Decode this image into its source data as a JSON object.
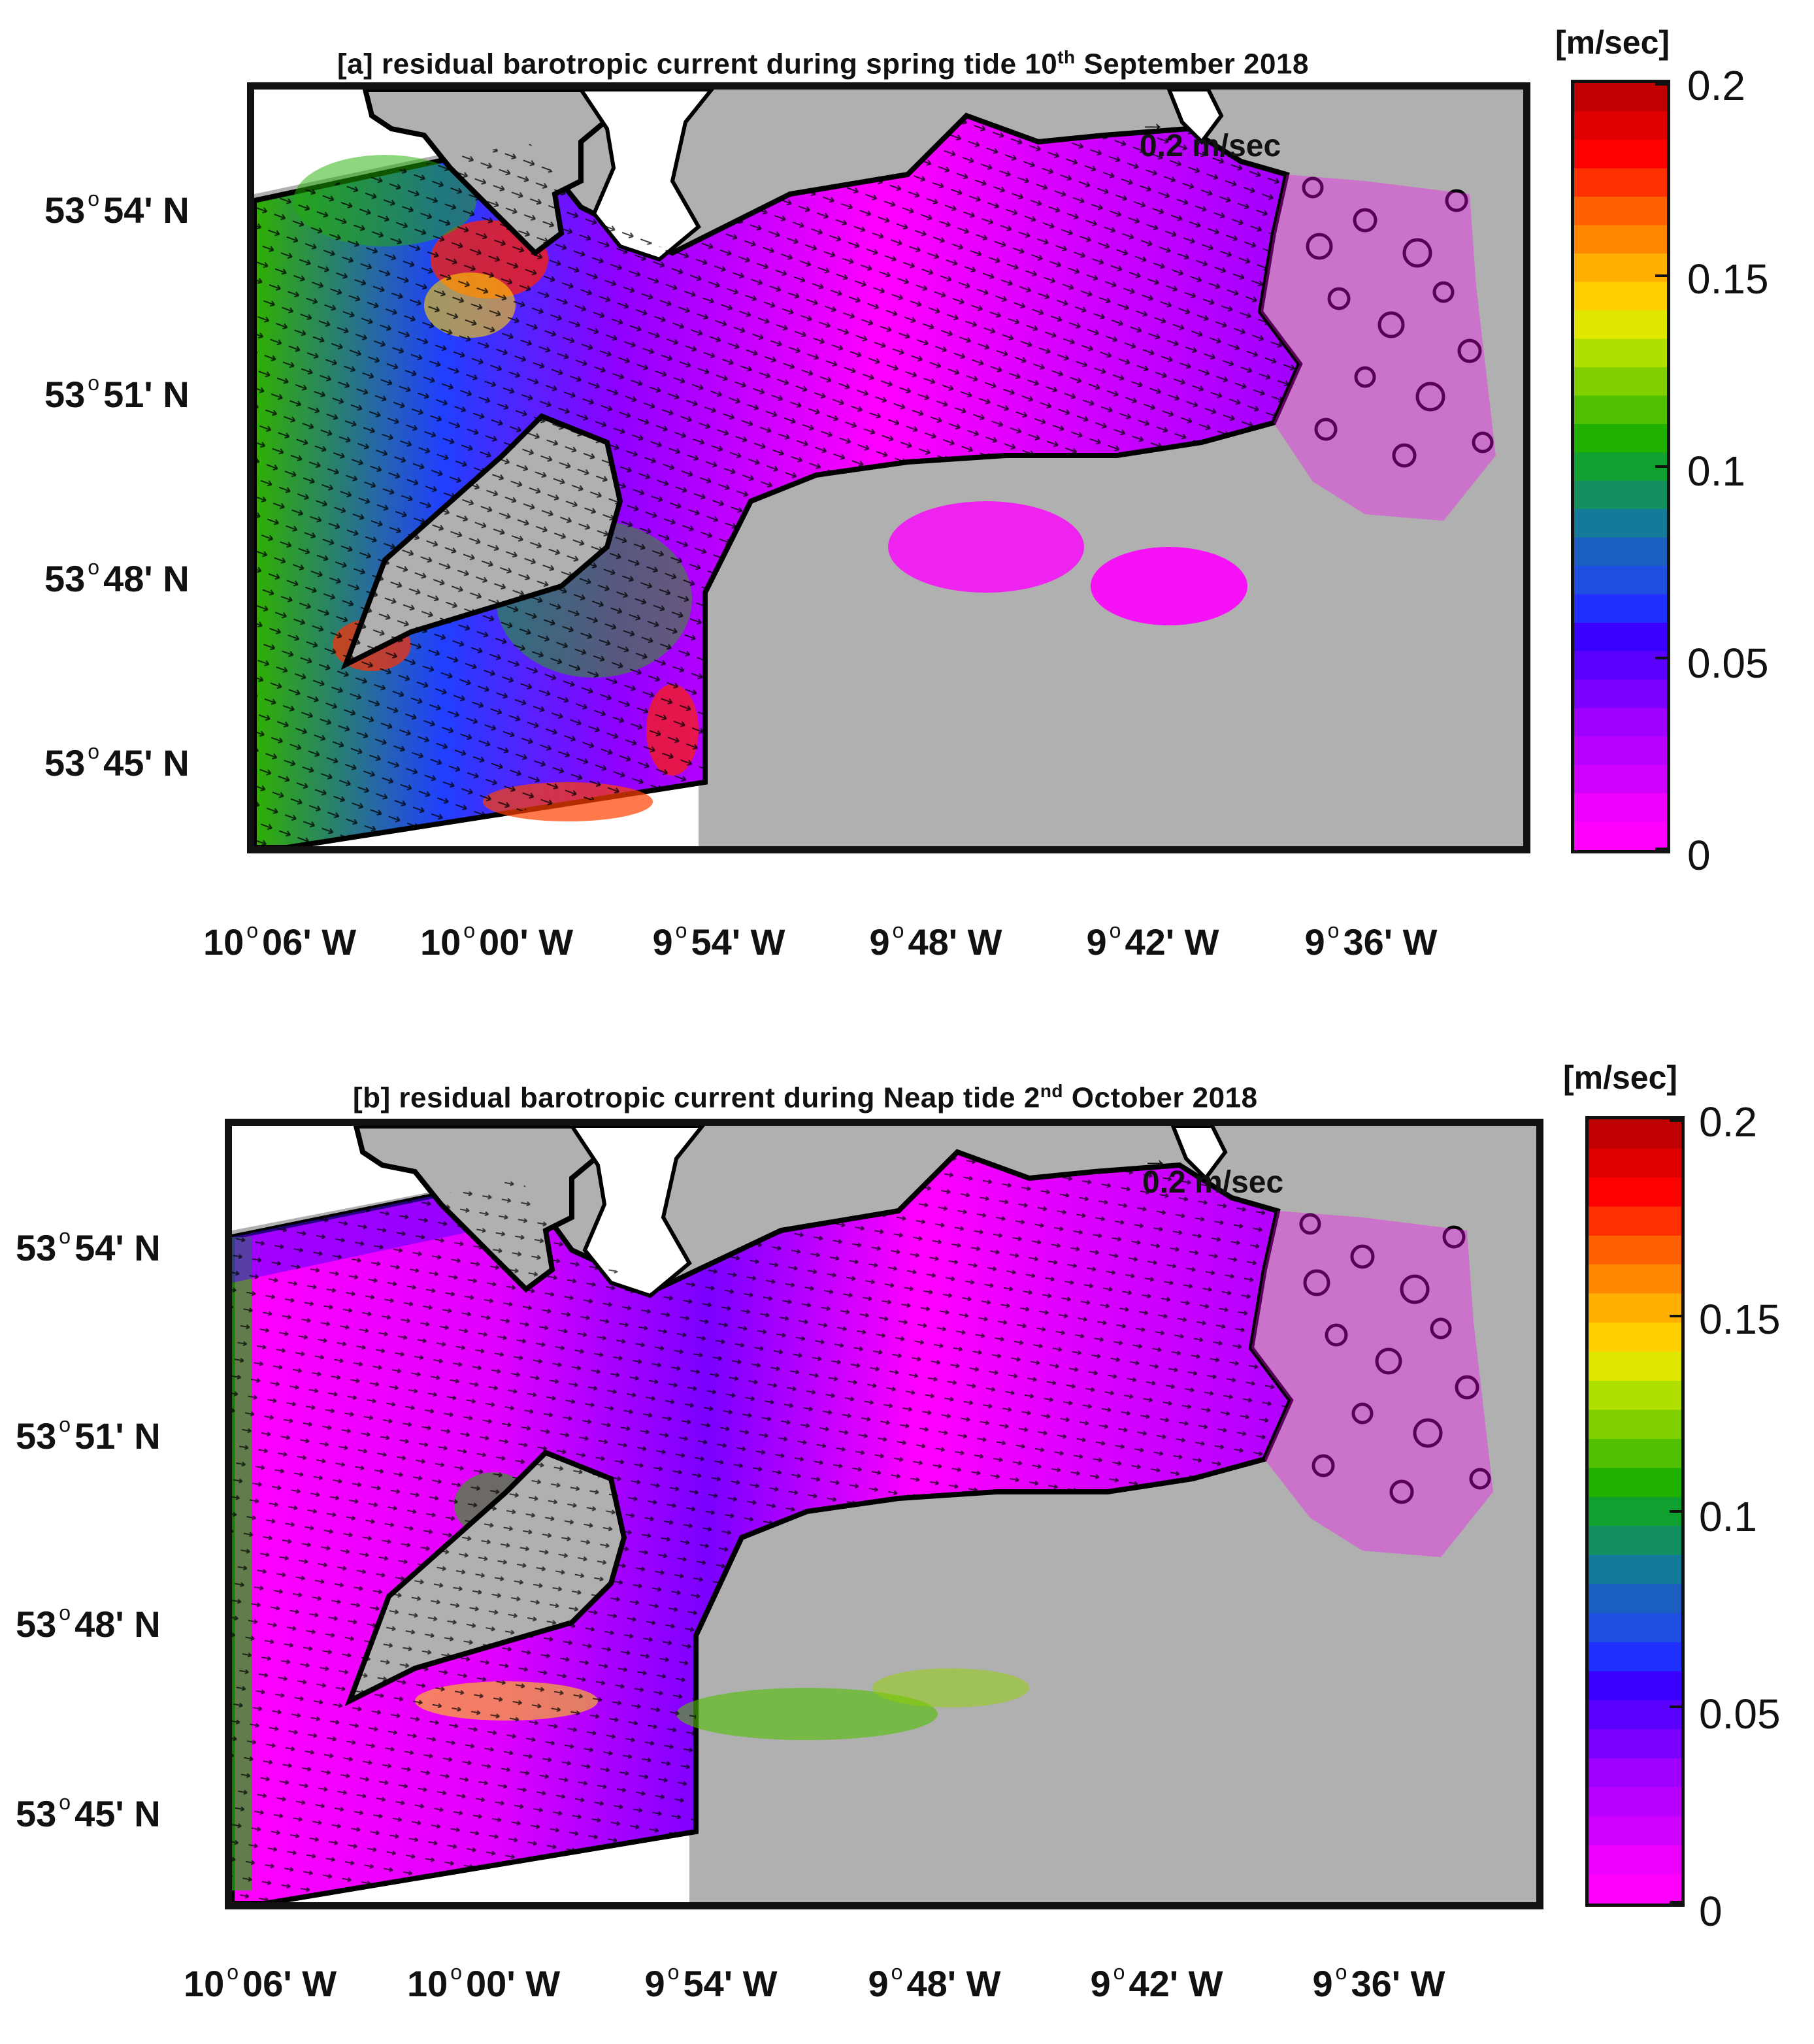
{
  "panels": [
    {
      "title_prefix": "[a] residual barotropic current during spring tide 10",
      "title_sup": "th",
      "title_suffix": " September 2018",
      "reference_arrow_label": "0.2 m/sec",
      "colorbar_unit": "[m/sec]"
    },
    {
      "title_prefix": "[b] residual barotropic current during Neap tide 2",
      "title_sup": "nd",
      "title_suffix": " October 2018",
      "reference_arrow_label": "0.2 m/sec",
      "colorbar_unit": "[m/sec]"
    }
  ],
  "axes": {
    "lat_ticks": [
      {
        "deg": "53",
        "min": "54' N"
      },
      {
        "deg": "53",
        "min": "51' N"
      },
      {
        "deg": "53",
        "min": "48' N"
      },
      {
        "deg": "53",
        "min": "45' N"
      }
    ],
    "lon_ticks": [
      {
        "deg": "10",
        "min": "06' W"
      },
      {
        "deg": "10",
        "min": "00' W"
      },
      {
        "deg": "9",
        "min": "54' W"
      },
      {
        "deg": "9",
        "min": "48' W"
      },
      {
        "deg": "9",
        "min": "42' W"
      },
      {
        "deg": "9",
        "min": "36' W"
      }
    ]
  },
  "colorbar": {
    "min": 0,
    "max": 0.2,
    "tick_labels": [
      "0.2",
      "0.15",
      "0.1",
      "0.05",
      "0"
    ],
    "colors": [
      "#ff00ff",
      "#ee00ff",
      "#d000ff",
      "#b800ff",
      "#a000ff",
      "#7a00ff",
      "#5a00ff",
      "#3a00ff",
      "#2030ff",
      "#1f4fe0",
      "#1a5fc0",
      "#157a9a",
      "#139060",
      "#10a030",
      "#20b000",
      "#50c000",
      "#80d000",
      "#b0e000",
      "#e0e800",
      "#ffd000",
      "#ffb000",
      "#ff8800",
      "#ff6000",
      "#ff3000",
      "#ff0000",
      "#e00000",
      "#c00000"
    ]
  },
  "colors": {
    "land": "#b0b0b0",
    "outside_domain": "#ffffff",
    "coast": "#000000"
  }
}
